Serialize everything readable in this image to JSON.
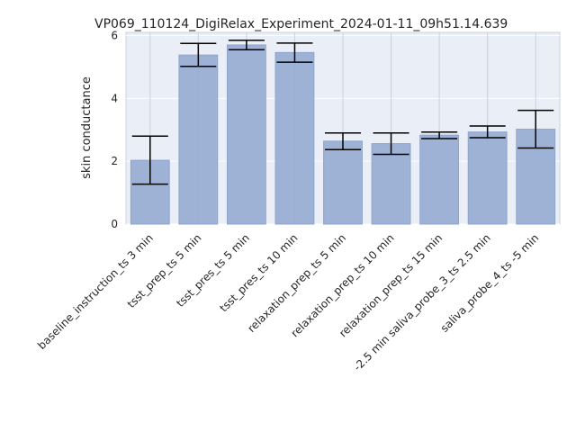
{
  "chart_data": {
    "type": "bar",
    "title": "VP069_110124_DigiRelax_Experiment_2024-01-11_09h51.14.639",
    "xlabel": "",
    "ylabel": "skin conductance",
    "ylim": [
      0,
      6.1
    ],
    "yticks": [
      0,
      2,
      4,
      6
    ],
    "grid": true,
    "categories": [
      "baseline_instruction_ts 3 min",
      "tsst_prep_ts 5 min",
      "tsst_pres_ts 5 min",
      "tsst_pres_ts 10 min",
      "relaxation_prep_ts 5 min",
      "relaxation_prep_ts 10 min",
      "relaxation_prep_ts 15 min",
      "-2.5 min saliva_probe_3_ts 2.5 min",
      "saliva_probe_4_ts -5 min"
    ],
    "values": [
      2.03,
      5.38,
      5.7,
      5.46,
      2.64,
      2.56,
      2.83,
      2.93,
      3.02
    ],
    "error_low": [
      1.27,
      5.02,
      5.55,
      5.15,
      2.37,
      2.22,
      2.72,
      2.75,
      2.42
    ],
    "error_high": [
      2.8,
      5.75,
      5.85,
      5.76,
      2.9,
      2.9,
      2.93,
      3.12,
      3.62
    ],
    "colors": {
      "bar": "#9aaed4",
      "bar_edge": "#8fa4cc",
      "background": "#eaeef6",
      "grid": "#cbd0da",
      "error": "#000000"
    }
  }
}
